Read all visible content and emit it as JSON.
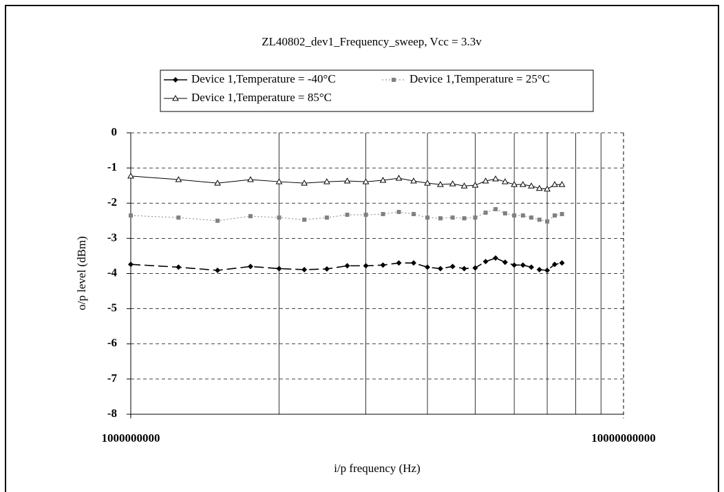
{
  "chart_data": {
    "type": "line",
    "title": "ZL40802_dev1_Frequency_sweep, Vcc = 3.3v",
    "x_label": "i/p frequency (Hz)",
    "y_label": "o/p level (dBm)",
    "x_scale": "log",
    "xlim": [
      1000000000,
      10000000000
    ],
    "xticks": [
      1000000000,
      10000000000
    ],
    "x_minor_grid": [
      2000000000,
      3000000000,
      4000000000,
      5000000000,
      6000000000,
      7000000000,
      8000000000,
      9000000000
    ],
    "ylim": [
      -8,
      0
    ],
    "yticks": [
      -8,
      -7,
      -6,
      -5,
      -4,
      -3,
      -2,
      -1,
      0
    ],
    "grid": true,
    "x": [
      1000000000,
      1250000000,
      1500000000,
      1750000000,
      2000000000,
      2250000000,
      2500000000,
      2750000000,
      3000000000,
      3250000000,
      3500000000,
      3750000000,
      4000000000,
      4250000000,
      4500000000,
      4750000000,
      5000000000,
      5250000000,
      5500000000,
      5750000000,
      6000000000,
      6250000000,
      6500000000,
      6750000000,
      7000000000,
      7250000000,
      7500000000
    ],
    "series": [
      {
        "name": "Device 1,Temperature = -40°C",
        "color": "#000000",
        "marker": "diamond",
        "dash": "14 6",
        "values": [
          -3.74,
          -3.82,
          -3.91,
          -3.8,
          -3.86,
          -3.89,
          -3.87,
          -3.78,
          -3.78,
          -3.76,
          -3.7,
          -3.7,
          -3.82,
          -3.86,
          -3.8,
          -3.86,
          -3.84,
          -3.66,
          -3.56,
          -3.68,
          -3.76,
          -3.76,
          -3.82,
          -3.89,
          -3.91,
          -3.74,
          -3.7
        ]
      },
      {
        "name": "Device 1,Temperature = 25°C",
        "color": "#808080",
        "marker": "square",
        "dash": "2 3",
        "values": [
          -2.35,
          -2.41,
          -2.5,
          -2.37,
          -2.41,
          -2.47,
          -2.41,
          -2.33,
          -2.33,
          -2.31,
          -2.25,
          -2.31,
          -2.41,
          -2.43,
          -2.41,
          -2.43,
          -2.41,
          -2.27,
          -2.17,
          -2.29,
          -2.35,
          -2.35,
          -2.41,
          -2.47,
          -2.52,
          -2.35,
          -2.31
        ]
      },
      {
        "name": "Device 1,Temperature = 85°C",
        "color": "#000000",
        "marker": "triangle",
        "dash": "none",
        "values": [
          -1.23,
          -1.33,
          -1.43,
          -1.33,
          -1.39,
          -1.43,
          -1.39,
          -1.37,
          -1.39,
          -1.35,
          -1.29,
          -1.37,
          -1.43,
          -1.47,
          -1.45,
          -1.51,
          -1.49,
          -1.37,
          -1.31,
          -1.39,
          -1.47,
          -1.47,
          -1.51,
          -1.58,
          -1.6,
          -1.47,
          -1.47
        ]
      }
    ]
  }
}
